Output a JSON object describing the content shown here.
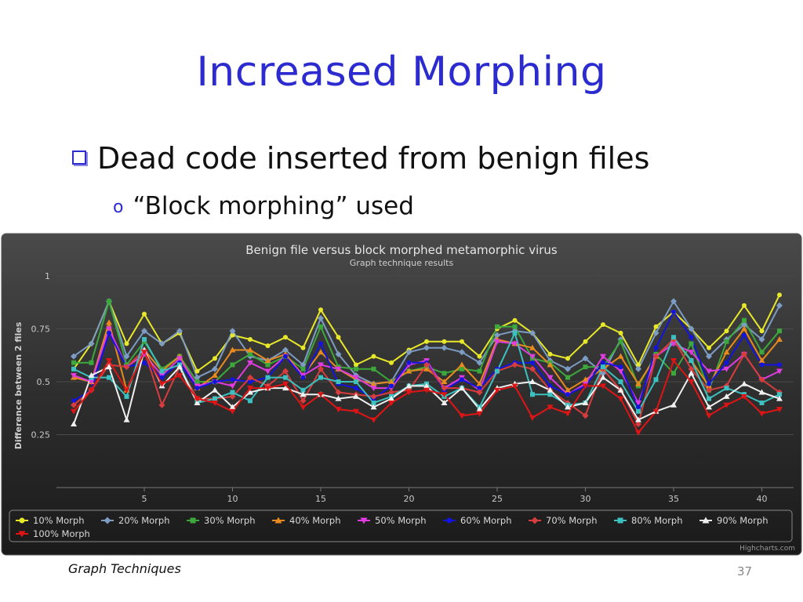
{
  "slide": {
    "title": "Increased Morphing",
    "bullet1": "Dead code inserted from benign files",
    "bullet2_marker": "o",
    "bullet2": "“Block morphing” used",
    "footer": "Graph Techniques",
    "page_number": "37"
  },
  "chart_data": {
    "type": "line",
    "title": "Benign file versus block morphed metamorphic virus",
    "subtitle": "Graph technique results",
    "xlabel": "",
    "ylabel": "Difference between 2 files",
    "xlim": [
      1,
      41
    ],
    "ylim": [
      0,
      1
    ],
    "yticks": [
      0.25,
      0.5,
      0.75,
      1
    ],
    "xticks": [
      5,
      10,
      15,
      20,
      25,
      30,
      35,
      40
    ],
    "ytick_labels": [
      "0.25",
      "0.5",
      "0.75",
      "1"
    ],
    "xtick_labels": [
      "5",
      "10",
      "15",
      "20",
      "25",
      "30",
      "35",
      "40"
    ],
    "credit": "Highcharts.com",
    "legend_position": "bottom",
    "x": [
      1,
      2,
      3,
      4,
      5,
      6,
      7,
      8,
      9,
      10,
      11,
      12,
      13,
      14,
      15,
      16,
      17,
      18,
      19,
      20,
      21,
      22,
      23,
      24,
      25,
      26,
      27,
      28,
      29,
      30,
      31,
      32,
      33,
      34,
      35,
      36,
      37,
      38,
      39,
      40,
      41
    ],
    "series": [
      {
        "name": "10% Morph",
        "color": "#e8e82a",
        "marker": "circle",
        "values": [
          0.56,
          0.68,
          0.88,
          0.68,
          0.82,
          0.68,
          0.73,
          0.55,
          0.61,
          0.72,
          0.7,
          0.67,
          0.71,
          0.66,
          0.84,
          0.71,
          0.58,
          0.62,
          0.59,
          0.65,
          0.69,
          0.69,
          0.69,
          0.62,
          0.75,
          0.79,
          0.73,
          0.63,
          0.61,
          0.69,
          0.77,
          0.73,
          0.58,
          0.76,
          0.83,
          0.75,
          0.66,
          0.74,
          0.86,
          0.74,
          0.91
        ]
      },
      {
        "name": "20% Morph",
        "color": "#7d9cc4",
        "marker": "diamond",
        "values": [
          0.62,
          0.68,
          0.88,
          0.62,
          0.74,
          0.68,
          0.74,
          0.52,
          0.56,
          0.74,
          0.62,
          0.6,
          0.65,
          0.58,
          0.8,
          0.63,
          0.53,
          0.49,
          0.5,
          0.64,
          0.66,
          0.66,
          0.64,
          0.59,
          0.72,
          0.74,
          0.73,
          0.6,
          0.56,
          0.61,
          0.54,
          0.7,
          0.56,
          0.73,
          0.88,
          0.75,
          0.62,
          0.7,
          0.77,
          0.7,
          0.86
        ]
      },
      {
        "name": "30% Morph",
        "color": "#3ca83c",
        "marker": "square",
        "values": [
          0.59,
          0.59,
          0.88,
          0.58,
          0.69,
          0.56,
          0.62,
          0.5,
          0.5,
          0.58,
          0.63,
          0.58,
          0.62,
          0.56,
          0.76,
          0.57,
          0.56,
          0.56,
          0.5,
          0.55,
          0.57,
          0.54,
          0.56,
          0.55,
          0.76,
          0.76,
          0.61,
          0.59,
          0.52,
          0.57,
          0.57,
          0.69,
          0.48,
          0.63,
          0.54,
          0.68,
          0.46,
          0.69,
          0.79,
          0.64,
          0.74
        ]
      },
      {
        "name": "40% Morph",
        "color": "#e88a1e",
        "marker": "triangle",
        "values": [
          0.52,
          0.5,
          0.78,
          0.46,
          0.65,
          0.55,
          0.62,
          0.47,
          0.53,
          0.65,
          0.65,
          0.6,
          0.63,
          0.53,
          0.64,
          0.56,
          0.51,
          0.49,
          0.5,
          0.55,
          0.56,
          0.5,
          0.58,
          0.49,
          0.7,
          0.68,
          0.66,
          0.58,
          0.46,
          0.51,
          0.56,
          0.62,
          0.49,
          0.62,
          0.7,
          0.6,
          0.48,
          0.64,
          0.75,
          0.6,
          0.7
        ]
      },
      {
        "name": "50% Morph",
        "color": "#e03ce0",
        "marker": "triangle-down",
        "values": [
          0.53,
          0.5,
          0.75,
          0.57,
          0.63,
          0.53,
          0.61,
          0.48,
          0.5,
          0.48,
          0.59,
          0.55,
          0.62,
          0.53,
          0.58,
          0.56,
          0.52,
          0.47,
          0.47,
          0.58,
          0.6,
          0.47,
          0.52,
          0.46,
          0.69,
          0.68,
          0.62,
          0.52,
          0.44,
          0.49,
          0.62,
          0.55,
          0.4,
          0.62,
          0.68,
          0.64,
          0.55,
          0.56,
          0.63,
          0.51,
          0.55
        ]
      },
      {
        "name": "60% Morph",
        "color": "#1414e0",
        "marker": "circle",
        "values": [
          0.41,
          0.46,
          0.73,
          0.57,
          0.59,
          0.52,
          0.59,
          0.47,
          0.5,
          0.51,
          0.5,
          0.52,
          0.62,
          0.52,
          0.68,
          0.49,
          0.47,
          0.42,
          0.48,
          0.59,
          0.59,
          0.46,
          0.51,
          0.47,
          0.56,
          0.59,
          0.59,
          0.48,
          0.44,
          0.48,
          0.59,
          0.57,
          0.38,
          0.66,
          0.83,
          0.71,
          0.49,
          0.59,
          0.72,
          0.58,
          0.58
        ]
      },
      {
        "name": "70% Morph",
        "color": "#d83c3c",
        "marker": "diamond",
        "values": [
          0.39,
          0.46,
          0.58,
          0.57,
          0.65,
          0.39,
          0.57,
          0.42,
          0.42,
          0.43,
          0.52,
          0.48,
          0.55,
          0.41,
          0.56,
          0.45,
          0.44,
          0.43,
          0.45,
          0.46,
          0.58,
          0.47,
          0.47,
          0.45,
          0.55,
          0.58,
          0.56,
          0.46,
          0.4,
          0.34,
          0.56,
          0.46,
          0.3,
          0.62,
          0.7,
          0.56,
          0.46,
          0.48,
          0.63,
          0.51,
          0.45
        ]
      },
      {
        "name": "80% Morph",
        "color": "#3cc0c0",
        "marker": "square",
        "values": [
          0.56,
          0.52,
          0.52,
          0.43,
          0.7,
          0.55,
          0.58,
          0.4,
          0.42,
          0.45,
          0.41,
          0.52,
          0.52,
          0.46,
          0.52,
          0.5,
          0.5,
          0.4,
          0.43,
          0.48,
          0.49,
          0.43,
          0.47,
          0.38,
          0.55,
          0.73,
          0.44,
          0.44,
          0.39,
          0.4,
          0.57,
          0.5,
          0.36,
          0.51,
          0.71,
          0.6,
          0.42,
          0.47,
          0.44,
          0.4,
          0.44
        ]
      },
      {
        "name": "90% Morph",
        "color": "#f0f0f0",
        "marker": "triangle",
        "values": [
          0.3,
          0.53,
          0.57,
          0.32,
          0.65,
          0.48,
          0.57,
          0.4,
          0.46,
          0.38,
          0.45,
          0.47,
          0.47,
          0.44,
          0.44,
          0.42,
          0.43,
          0.38,
          0.42,
          0.48,
          0.48,
          0.4,
          0.47,
          0.37,
          0.47,
          0.49,
          0.5,
          0.46,
          0.38,
          0.4,
          0.52,
          0.46,
          0.32,
          0.36,
          0.39,
          0.54,
          0.38,
          0.43,
          0.49,
          0.45,
          0.42
        ]
      },
      {
        "name": "100% Morph",
        "color": "#e01414",
        "marker": "triangle-down",
        "values": [
          0.36,
          0.46,
          0.6,
          0.46,
          0.64,
          0.49,
          0.53,
          0.42,
          0.4,
          0.36,
          0.47,
          0.47,
          0.49,
          0.38,
          0.44,
          0.37,
          0.36,
          0.32,
          0.4,
          0.45,
          0.46,
          0.44,
          0.34,
          0.35,
          0.46,
          0.48,
          0.33,
          0.38,
          0.35,
          0.48,
          0.48,
          0.42,
          0.26,
          0.36,
          0.6,
          0.5,
          0.34,
          0.39,
          0.43,
          0.35,
          0.37
        ]
      }
    ]
  }
}
